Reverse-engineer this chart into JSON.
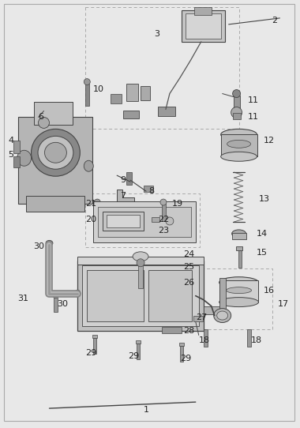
{
  "fig_width": 3.8,
  "fig_height": 5.42,
  "dpi": 100,
  "bg_color": "#e8e8e8",
  "border_color": "#999999",
  "part_gray": "#9a9a9a",
  "part_light": "#c8c8c8",
  "part_dark": "#555555",
  "part_edge": "#444444",
  "label_fs": 8,
  "label_color": "#222222",
  "dash_color": "#aaaaaa",
  "line_color": "#555555"
}
